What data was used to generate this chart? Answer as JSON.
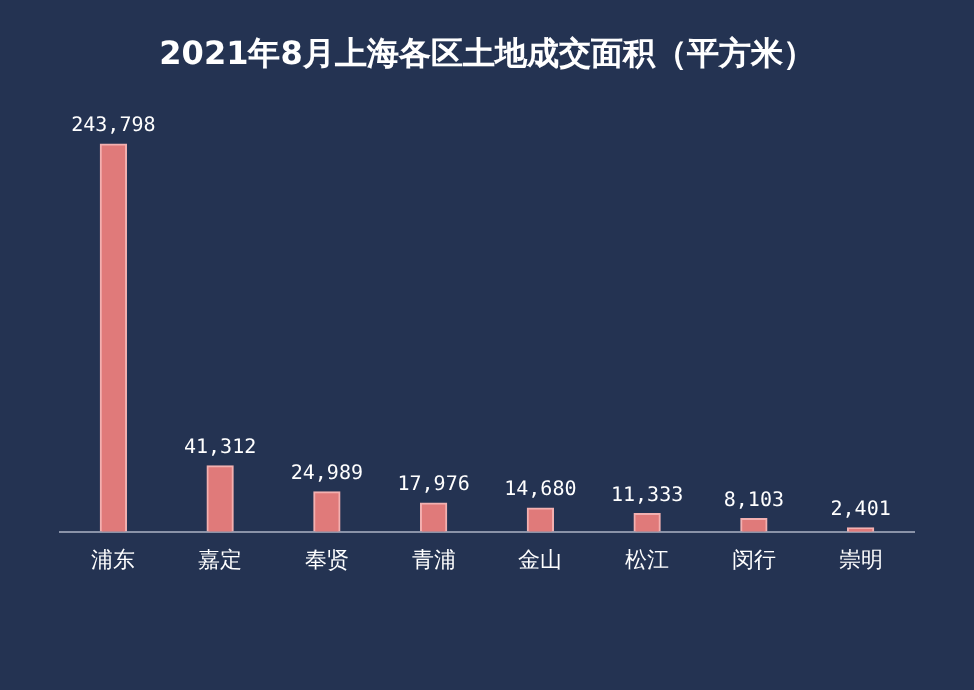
{
  "chart_data": {
    "type": "bar",
    "title": "2021年8月上海各区土地成交面积（平方米）",
    "categories": [
      "浦东",
      "嘉定",
      "奉贤",
      "青浦",
      "金山",
      "松江",
      "闵行",
      "崇明"
    ],
    "values": [
      243798,
      41312,
      24989,
      17976,
      14680,
      11333,
      8103,
      2401
    ],
    "value_labels": [
      "243,798",
      "41,312",
      "24,989",
      "17,976",
      "14,680",
      "11,333",
      "8,103",
      "2,401"
    ],
    "color": "#e07a7a",
    "grid": false,
    "legend": false
  }
}
